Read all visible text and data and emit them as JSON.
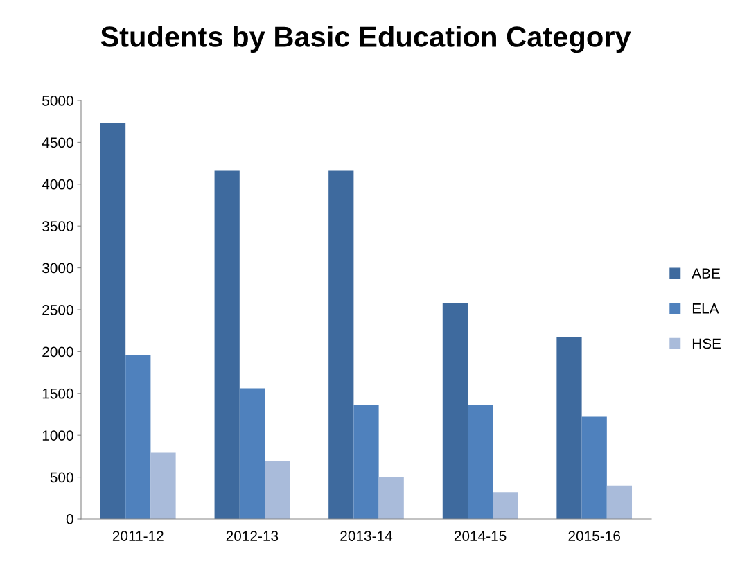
{
  "chart_data": {
    "type": "bar",
    "title": "Students by Basic Education Category",
    "categories": [
      "2011-12",
      "2012-13",
      "2013-14",
      "2014-15",
      "2015-16"
    ],
    "series": [
      {
        "name": "ABE",
        "color": "#3e6a9e",
        "values": [
          4730,
          4160,
          4160,
          2580,
          2170
        ]
      },
      {
        "name": "ELA",
        "color": "#4f81bd",
        "values": [
          1960,
          1560,
          1360,
          1360,
          1220
        ]
      },
      {
        "name": "HSE",
        "color": "#a9bbda",
        "values": [
          790,
          690,
          500,
          320,
          400
        ]
      }
    ],
    "ylim": [
      0,
      5000
    ],
    "yticks": [
      0,
      500,
      1000,
      1500,
      2000,
      2500,
      3000,
      3500,
      4000,
      4500,
      5000
    ],
    "grid": false,
    "legend": "right"
  }
}
